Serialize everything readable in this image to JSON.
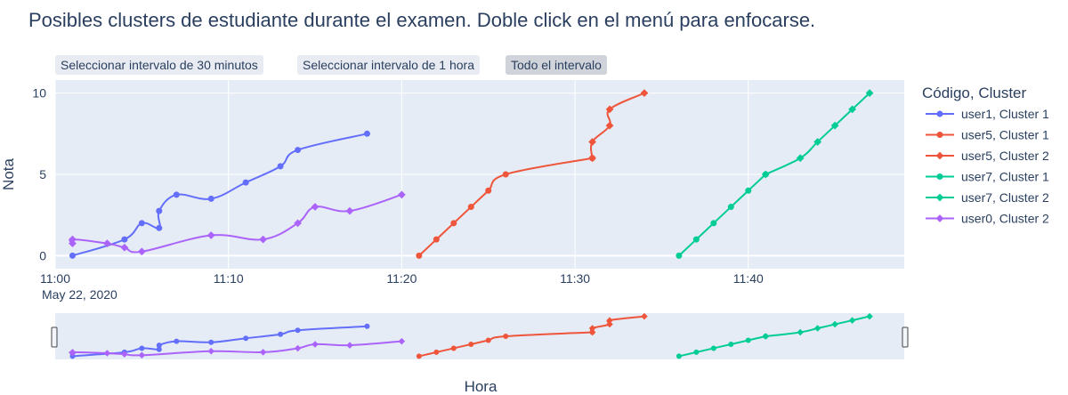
{
  "title": "Posibles clusters de estudiante durante el examen. Doble click en el menú para enfocarse.",
  "range_buttons": [
    {
      "label": "Seleccionar intervalo de 30 minutos",
      "active": false
    },
    {
      "label": "Seleccionar intervalo de 1 hora",
      "active": false
    },
    {
      "label": "Todo el intervalo",
      "active": true
    }
  ],
  "chart_data": {
    "type": "line",
    "xlabel": "Hora",
    "ylabel": "Nota",
    "x_date_label": "May 22, 2020",
    "x_ticks": [
      "11:00",
      "11:10",
      "11:20",
      "11:30",
      "11:40"
    ],
    "x_tick_minutes": [
      0,
      10,
      20,
      30,
      40
    ],
    "xlim": [
      "11:00",
      "11:49"
    ],
    "y_ticks": [
      0,
      5,
      10
    ],
    "ylim": [
      -0.8,
      10.8
    ],
    "grid": true,
    "rangeslider": true,
    "legend_title": "Código, Cluster",
    "legend_position": "right",
    "series": [
      {
        "name": "user1, Cluster 1",
        "color": "#636efa",
        "marker": "circle",
        "x": [
          "11:01",
          "11:04",
          "11:05",
          "11:06",
          "11:06",
          "11:07",
          "11:09",
          "11:11",
          "11:13",
          "11:14",
          "11:18"
        ],
        "y": [
          0.0,
          1.0,
          2.0,
          1.7,
          2.75,
          3.75,
          3.5,
          4.5,
          5.5,
          6.5,
          7.5
        ]
      },
      {
        "name": "user5, Cluster 1",
        "color": "#ef553b",
        "marker": "circle",
        "x": [
          "11:21",
          "11:22",
          "11:23",
          "11:24",
          "11:25",
          "11:26",
          "11:31"
        ],
        "y": [
          0.0,
          1.0,
          2.0,
          3.0,
          4.0,
          5.0,
          6.0
        ]
      },
      {
        "name": "user5, Cluster 2",
        "color": "#ef553b",
        "marker": "diamond",
        "x": [
          "11:31",
          "11:31",
          "11:32",
          "11:32",
          "11:34"
        ],
        "y": [
          6.0,
          7.0,
          8.0,
          9.0,
          10.0
        ]
      },
      {
        "name": "user7, Cluster 1",
        "color": "#00cc96",
        "marker": "circle",
        "x": [
          "11:36",
          "11:37",
          "11:38",
          "11:39",
          "11:40",
          "11:41"
        ],
        "y": [
          0.0,
          1.0,
          2.0,
          3.0,
          4.0,
          5.0
        ]
      },
      {
        "name": "user7, Cluster 2",
        "color": "#00cc96",
        "marker": "diamond",
        "x": [
          "11:41",
          "11:43",
          "11:44",
          "11:45",
          "11:46",
          "11:47"
        ],
        "y": [
          5.0,
          6.0,
          7.0,
          8.0,
          9.0,
          10.0
        ]
      },
      {
        "name": "user0, Cluster 2",
        "color": "#ab63fa",
        "marker": "diamond",
        "x": [
          "11:01",
          "11:01",
          "11:03",
          "11:04",
          "11:05",
          "11:09",
          "11:12",
          "11:14",
          "11:15",
          "11:17",
          "11:20"
        ],
        "y": [
          0.75,
          1.0,
          0.75,
          0.5,
          0.25,
          1.25,
          1.0,
          2.0,
          3.0,
          2.75,
          3.75
        ]
      }
    ]
  }
}
